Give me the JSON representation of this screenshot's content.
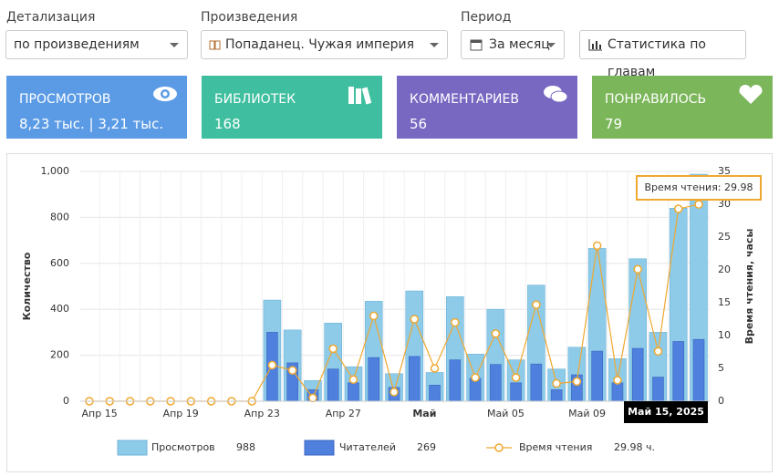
{
  "filters": [
    {
      "label": "Детализация",
      "value": "по произведениям"
    },
    {
      "label": "Произведения",
      "value": "Попаданец. Чужая империя"
    },
    {
      "label": "Период",
      "value": "За месяц"
    }
  ],
  "button": "Статистика по главам",
  "cards": [
    {
      "title": "ПРОСМОТРОВ",
      "value": "8,23 тыс. | 3,21 тыс.",
      "color": "#5b9be6"
    },
    {
      "title": "БИБЛИОТЕК",
      "value": 168,
      "color": "#3fbf9f"
    },
    {
      "title": "КОММЕНТАРИЕВ",
      "value": 56,
      "color": "#7868c2"
    },
    {
      "title": "ПОНРАВИЛОСЬ",
      "value": 79,
      "color": "#7cb65b"
    }
  ],
  "chart_data": {
    "type": "combo",
    "categories": [
      "Апр 15",
      null,
      null,
      null,
      "Апр 19",
      null,
      null,
      null,
      "Апр 23",
      null,
      null,
      null,
      "Апр 27",
      null,
      null,
      null,
      "Май",
      null,
      null,
      null,
      "Май 05",
      null,
      null,
      null,
      "Май 09",
      null,
      null,
      null,
      null,
      null,
      null
    ],
    "series": [
      {
        "name": "Просмотров",
        "type": "bar",
        "color": "#8ecbe8",
        "values": [
          0,
          0,
          0,
          0,
          0,
          0,
          0,
          0,
          0,
          440,
          310,
          90,
          340,
          150,
          435,
          120,
          480,
          125,
          455,
          205,
          400,
          180,
          505,
          140,
          235,
          665,
          185,
          620,
          300,
          840,
          988
        ]
      },
      {
        "name": "Читателей",
        "type": "bar",
        "color": "#4f80de",
        "values": [
          0,
          0,
          0,
          0,
          0,
          0,
          0,
          0,
          0,
          300,
          167,
          50,
          140,
          80,
          190,
          60,
          195,
          70,
          180,
          100,
          160,
          80,
          162,
          50,
          115,
          218,
          80,
          230,
          105,
          260,
          269
        ]
      },
      {
        "name": "Время чтения",
        "type": "line",
        "axis": "y2",
        "color": "#f0a830",
        "legend_label": "29.98 ч.",
        "values": [
          0,
          0,
          0,
          0,
          0,
          0,
          0,
          0,
          0,
          5.5,
          4.7,
          0.5,
          8,
          3.3,
          13,
          1.4,
          12.5,
          5,
          12,
          3.6,
          10.3,
          3.6,
          14.7,
          2.7,
          3,
          23.7,
          3.2,
          20.1,
          7.6,
          29.3,
          29.98
        ]
      }
    ],
    "ylabel": "Количество",
    "y2label": "Время чтения, часы",
    "ylim": [
      0,
      1000
    ],
    "yticks": [
      0,
      200,
      400,
      600,
      800,
      {
        "value": 1000,
        "label": "1,000"
      }
    ],
    "y2lim": [
      0,
      35
    ],
    "y2ticks": [
      0,
      5,
      10,
      15,
      20,
      25,
      30,
      35
    ],
    "grid": true,
    "tooltip": "Время чтения: 29.98",
    "x_tooltip": "Май 15, 2025"
  }
}
